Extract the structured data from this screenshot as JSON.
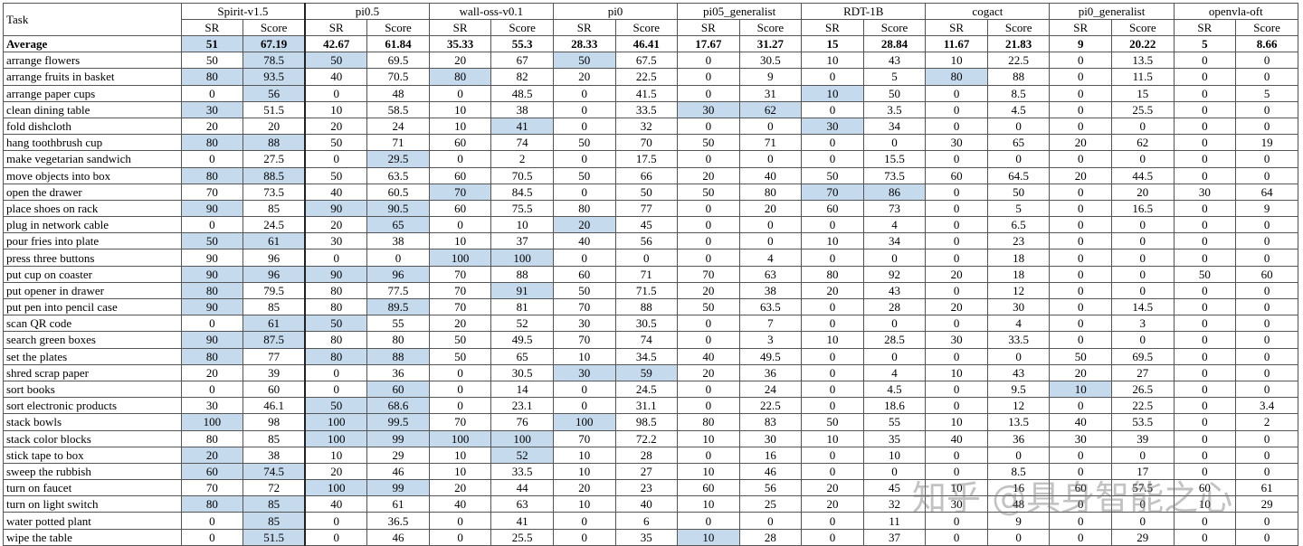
{
  "table": {
    "header": {
      "task": "Task",
      "models": [
        "Spirit-v1.5",
        "pi0.5",
        "wall-oss-v0.1",
        "pi0",
        "pi05_generalist",
        "RDT-1B",
        "cogact",
        "pi0_generalist",
        "openvla-oft"
      ],
      "metric_labels": [
        "SR",
        "Score"
      ]
    },
    "rows": [
      [
        "Average",
        51,
        67.19,
        42.67,
        61.84,
        35.33,
        55.3,
        28.33,
        46.41,
        17.67,
        31.27,
        15,
        28.84,
        11.67,
        21.83,
        9,
        20.22,
        5,
        8.66
      ],
      [
        "arrange flowers",
        50,
        78.5,
        50,
        69.5,
        20,
        67,
        50,
        67.5,
        0,
        30.5,
        10,
        43,
        10,
        22.5,
        0,
        13.5,
        0,
        0
      ],
      [
        "arrange fruits in basket",
        80,
        93.5,
        40,
        70.5,
        80,
        82,
        20,
        22.5,
        0,
        9,
        0,
        5,
        80,
        88,
        0,
        11.5,
        0,
        0
      ],
      [
        "arrange paper cups",
        0,
        56,
        0,
        48,
        0,
        48.5,
        0,
        41.5,
        0,
        31,
        10,
        50,
        0,
        8.5,
        0,
        15,
        0,
        5
      ],
      [
        "clean dining table",
        30,
        51.5,
        10,
        58.5,
        10,
        38,
        0,
        33.5,
        30,
        62,
        0,
        3.5,
        0,
        4.5,
        0,
        25.5,
        0,
        0
      ],
      [
        "fold dishcloth",
        20,
        20,
        20,
        24,
        10,
        41,
        0,
        32,
        0,
        0,
        30,
        34,
        0,
        0,
        0,
        0,
        0,
        0
      ],
      [
        "hang toothbrush cup",
        80,
        88,
        50,
        71,
        60,
        74,
        50,
        70,
        50,
        71,
        0,
        0,
        30,
        65,
        20,
        62,
        0,
        19
      ],
      [
        "make vegetarian sandwich",
        0,
        27.5,
        0,
        29.5,
        0,
        2,
        0,
        17.5,
        0,
        0,
        0,
        15.5,
        0,
        0,
        0,
        0,
        0,
        0
      ],
      [
        "move objects into box",
        80,
        88.5,
        50,
        63.5,
        60,
        70.5,
        50,
        66,
        20,
        40,
        50,
        73.5,
        60,
        64.5,
        20,
        44.5,
        0,
        0
      ],
      [
        "open the drawer",
        70,
        73.5,
        40,
        60.5,
        70,
        84.5,
        0,
        50,
        50,
        80,
        70,
        86,
        0,
        50,
        0,
        20,
        30,
        64
      ],
      [
        "place shoes on rack",
        90,
        85,
        90,
        90.5,
        60,
        75.5,
        80,
        77,
        0,
        20,
        60,
        73,
        0,
        5,
        0,
        16.5,
        0,
        9
      ],
      [
        "plug in network cable",
        0,
        24.5,
        20,
        65,
        0,
        10,
        20,
        45,
        0,
        0,
        0,
        4,
        0,
        6.5,
        0,
        0,
        0,
        0
      ],
      [
        "pour fries into plate",
        50,
        61,
        30,
        38,
        10,
        37,
        40,
        56,
        0,
        0,
        10,
        34,
        0,
        23,
        0,
        0,
        0,
        0
      ],
      [
        "press three buttons",
        90,
        96,
        0,
        0,
        100,
        100,
        0,
        0,
        0,
        4,
        0,
        0,
        0,
        18,
        0,
        0,
        0,
        0
      ],
      [
        "put cup on coaster",
        90,
        96,
        90,
        96,
        70,
        88,
        60,
        71,
        70,
        63,
        80,
        92,
        20,
        18,
        0,
        0,
        50,
        60
      ],
      [
        "put opener in drawer",
        80,
        79.5,
        80,
        77.5,
        70,
        91,
        50,
        71.5,
        20,
        38,
        20,
        43,
        0,
        12,
        0,
        0,
        0,
        0
      ],
      [
        "put pen into pencil case",
        90,
        85,
        80,
        89.5,
        70,
        81,
        70,
        88,
        50,
        63.5,
        0,
        28,
        20,
        30,
        0,
        14.5,
        0,
        0
      ],
      [
        "scan QR code",
        0,
        61,
        50,
        55,
        20,
        52,
        30,
        30.5,
        0,
        7,
        0,
        0,
        0,
        4,
        0,
        3,
        0,
        0
      ],
      [
        "search green boxes",
        90,
        87.5,
        80,
        80,
        50,
        49.5,
        70,
        74,
        0,
        3,
        10,
        28.5,
        30,
        33.5,
        0,
        0,
        0,
        0
      ],
      [
        "set the plates",
        80,
        77,
        80,
        88,
        50,
        65,
        10,
        34.5,
        40,
        49.5,
        0,
        0,
        0,
        0,
        50,
        69.5,
        0,
        0
      ],
      [
        "shred scrap paper",
        20,
        39,
        0,
        36,
        0,
        30.5,
        30,
        59,
        20,
        36,
        0,
        4,
        10,
        43,
        20,
        27,
        0,
        0
      ],
      [
        "sort books",
        0,
        60,
        0,
        60,
        0,
        14,
        0,
        24.5,
        0,
        24,
        0,
        4.5,
        0,
        9.5,
        10,
        26.5,
        0,
        0
      ],
      [
        "sort electronic products",
        30,
        46.1,
        50,
        68.6,
        0,
        23.1,
        0,
        31.1,
        0,
        22.5,
        0,
        18.6,
        0,
        12,
        0,
        22.5,
        0,
        3.4
      ],
      [
        "stack bowls",
        100,
        98,
        100,
        99.5,
        70,
        76,
        100,
        98.5,
        80,
        83,
        50,
        55,
        10,
        13.5,
        40,
        53.5,
        0,
        2
      ],
      [
        "stack color blocks",
        80,
        85,
        100,
        99,
        100,
        100,
        70,
        72.2,
        10,
        30,
        10,
        35,
        40,
        36,
        30,
        39,
        0,
        0
      ],
      [
        "stick tape to box",
        20,
        38,
        10,
        29,
        10,
        52,
        10,
        28,
        0,
        16,
        0,
        10,
        0,
        0,
        0,
        0,
        0,
        0
      ],
      [
        "sweep the rubbish",
        60,
        74.5,
        20,
        46,
        10,
        33.5,
        10,
        27,
        10,
        46,
        0,
        0,
        0,
        8.5,
        0,
        17,
        0,
        0
      ],
      [
        "turn on faucet",
        70,
        72,
        100,
        99,
        20,
        44,
        20,
        23,
        60,
        56,
        20,
        45,
        10,
        16,
        60,
        57.5,
        60,
        61
      ],
      [
        "turn on light switch",
        80,
        85,
        40,
        61,
        40,
        63,
        10,
        40,
        10,
        25,
        20,
        32,
        30,
        48,
        0,
        0,
        10,
        29
      ],
      [
        "water potted plant",
        0,
        85,
        0,
        36.5,
        0,
        41,
        0,
        6,
        0,
        0,
        0,
        11,
        0,
        9,
        0,
        0,
        0,
        0
      ],
      [
        "wipe the table",
        0,
        51.5,
        0,
        46,
        0,
        25.5,
        0,
        35,
        10,
        28,
        0,
        37,
        0,
        0,
        0,
        29,
        0,
        0
      ]
    ],
    "highlighted_cells": [
      [
        0,
        1
      ],
      [
        0,
        2
      ],
      [
        1,
        2
      ],
      [
        1,
        3
      ],
      [
        1,
        7
      ],
      [
        2,
        1
      ],
      [
        2,
        2
      ],
      [
        2,
        5
      ],
      [
        2,
        13
      ],
      [
        3,
        2
      ],
      [
        3,
        11
      ],
      [
        4,
        1
      ],
      [
        4,
        9
      ],
      [
        4,
        10
      ],
      [
        5,
        6
      ],
      [
        5,
        11
      ],
      [
        6,
        1
      ],
      [
        6,
        2
      ],
      [
        7,
        4
      ],
      [
        8,
        1
      ],
      [
        8,
        2
      ],
      [
        9,
        5
      ],
      [
        9,
        11
      ],
      [
        9,
        12
      ],
      [
        10,
        1
      ],
      [
        10,
        3
      ],
      [
        10,
        4
      ],
      [
        11,
        4
      ],
      [
        11,
        7
      ],
      [
        12,
        1
      ],
      [
        12,
        2
      ],
      [
        13,
        5
      ],
      [
        13,
        6
      ],
      [
        14,
        1
      ],
      [
        14,
        2
      ],
      [
        14,
        3
      ],
      [
        14,
        4
      ],
      [
        15,
        1
      ],
      [
        15,
        6
      ],
      [
        16,
        1
      ],
      [
        16,
        4
      ],
      [
        17,
        2
      ],
      [
        17,
        3
      ],
      [
        18,
        1
      ],
      [
        18,
        2
      ],
      [
        19,
        1
      ],
      [
        19,
        3
      ],
      [
        19,
        4
      ],
      [
        20,
        7
      ],
      [
        20,
        8
      ],
      [
        21,
        4
      ],
      [
        21,
        15
      ],
      [
        22,
        3
      ],
      [
        22,
        4
      ],
      [
        23,
        1
      ],
      [
        23,
        3
      ],
      [
        23,
        4
      ],
      [
        23,
        7
      ],
      [
        24,
        3
      ],
      [
        24,
        4
      ],
      [
        24,
        5
      ],
      [
        24,
        6
      ],
      [
        25,
        1
      ],
      [
        25,
        6
      ],
      [
        26,
        1
      ],
      [
        26,
        2
      ],
      [
        27,
        3
      ],
      [
        27,
        4
      ],
      [
        28,
        1
      ],
      [
        28,
        2
      ],
      [
        29,
        2
      ],
      [
        30,
        2
      ],
      [
        30,
        9
      ]
    ]
  },
  "watermark": "知乎 @具身智能之心"
}
